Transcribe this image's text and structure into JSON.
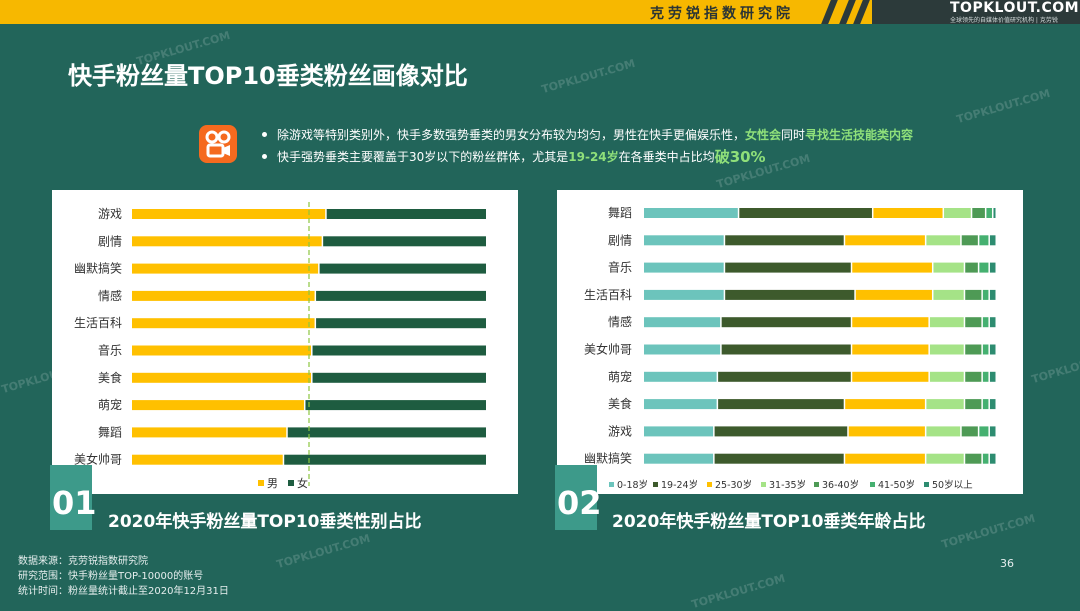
{
  "header": {
    "brand_cn": "克劳锐指数研究院",
    "brand_en": "TOPKLOUT.COM",
    "brand_sub": "全球领先的自媒体价值研究机构 | 克劳锐"
  },
  "watermark": "TOPKLOUT.COM",
  "title": "快手粉丝量TOP10垂类粉丝画像对比",
  "bullets": {
    "b1": {
      "p1": "除游戏等特别类别外，快手多数强势垂类的男女分布较为均匀，男性在快手更偏娱乐性，",
      "h1": "女性会",
      "p2": "同时",
      "h2": "寻找生活技能类内容"
    },
    "b2": {
      "p1": "快手强势垂类主要覆盖于30岁以下的粉丝群体，尤其是",
      "h1": "19-24岁",
      "p2": "在各垂类中占比均",
      "h2": "破30%"
    }
  },
  "colors": {
    "male": "#ffc000",
    "female": "#1e5c40",
    "age": [
      "#6cc4bc",
      "#3d5a2c",
      "#ffc000",
      "#a5e387",
      "#4e9a55",
      "#45b070",
      "#2d8c70"
    ]
  },
  "chart_data": [
    {
      "type": "bar",
      "stacked": true,
      "orientation": "horizontal",
      "title": "2020年快手粉丝量TOP10垂类性别占比",
      "panel_number": "01",
      "categories": [
        "游戏",
        "剧情",
        "幽默搞笑",
        "情感",
        "生活百科",
        "音乐",
        "美食",
        "萌宠",
        "舞蹈",
        "美女帅哥"
      ],
      "series": [
        {
          "name": "男",
          "values": [
            55,
            54,
            53,
            52,
            52,
            51,
            51,
            49,
            44,
            43
          ]
        },
        {
          "name": "女",
          "values": [
            45,
            46,
            47,
            48,
            48,
            49,
            49,
            51,
            56,
            57
          ]
        }
      ],
      "xlim": [
        0,
        100
      ],
      "reference_line": 50,
      "legend": "bottom"
    },
    {
      "type": "bar",
      "stacked": true,
      "orientation": "horizontal",
      "title": "2020年快手粉丝量TOP10垂类年龄占比",
      "panel_number": "02",
      "categories": [
        "舞蹈",
        "剧情",
        "音乐",
        "生活百科",
        "情感",
        "美女帅哥",
        "萌宠",
        "美食",
        "游戏",
        "幽默搞笑"
      ],
      "series": [
        {
          "name": "0-18岁",
          "values": [
            27,
            23,
            23,
            23,
            22,
            22,
            21,
            21,
            20,
            20
          ]
        },
        {
          "name": "19-24岁",
          "values": [
            38,
            34,
            36,
            37,
            37,
            37,
            38,
            36,
            38,
            37
          ]
        },
        {
          "name": "25-30岁",
          "values": [
            20,
            23,
            23,
            22,
            22,
            22,
            22,
            23,
            22,
            23
          ]
        },
        {
          "name": "31-35岁",
          "values": [
            8,
            10,
            9,
            9,
            10,
            10,
            10,
            11,
            10,
            11
          ]
        },
        {
          "name": "36-40岁",
          "values": [
            4,
            5,
            4,
            5,
            5,
            5,
            5,
            5,
            5,
            5
          ]
        },
        {
          "name": "41-50岁",
          "values": [
            2,
            3,
            3,
            2,
            2,
            2,
            2,
            2,
            3,
            2
          ]
        },
        {
          "name": "50岁以上",
          "values": [
            1,
            2,
            2,
            2,
            2,
            2,
            2,
            2,
            2,
            2
          ]
        }
      ],
      "xlim": [
        0,
        100
      ],
      "legend": "bottom"
    }
  ],
  "footer": {
    "source": "数据来源：克劳锐指数研究院",
    "scope": "研究范围：快手粉丝量TOP-10000的账号",
    "time": "统计时间：粉丝量统计截止至2020年12月31日"
  },
  "page_number": "36"
}
